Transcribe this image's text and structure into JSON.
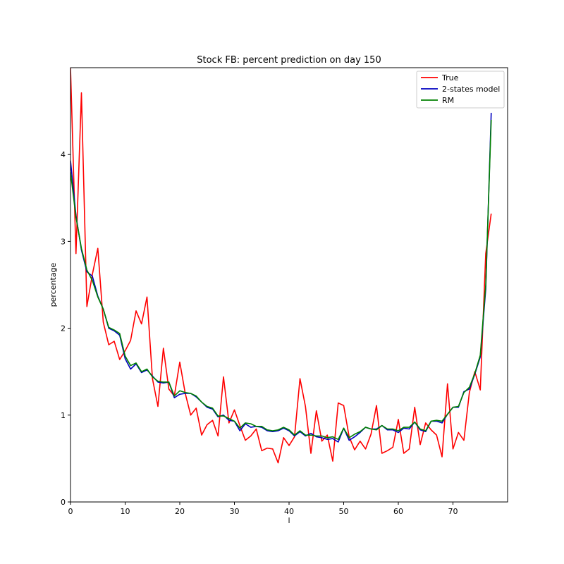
{
  "chart_data": {
    "type": "line",
    "title": "Stock FB: percent prediction on day 150",
    "xlabel": "l",
    "ylabel": "percentage",
    "xlim": [
      0,
      80
    ],
    "ylim": [
      0,
      5
    ],
    "xticks": [
      0,
      10,
      20,
      30,
      40,
      50,
      60,
      70
    ],
    "yticks": [
      0,
      1,
      2,
      3,
      4
    ],
    "grid": false,
    "legend_position": "top-right",
    "series": [
      {
        "name": "True",
        "color": "#ff0000",
        "x": [
          0,
          1,
          2,
          3,
          4,
          5,
          6,
          7,
          8,
          9,
          10,
          11,
          12,
          13,
          14,
          15,
          16,
          17,
          18,
          19,
          20,
          21,
          22,
          23,
          24,
          25,
          26,
          27,
          28,
          29,
          30,
          31,
          32,
          33,
          34,
          35,
          36,
          37,
          38,
          39,
          40,
          41,
          42,
          43,
          44,
          45,
          46,
          47,
          48,
          49,
          50,
          51,
          52,
          53,
          54,
          55,
          56,
          57,
          58,
          59,
          60,
          61,
          62,
          63,
          64,
          65,
          66,
          67,
          68,
          69,
          70,
          71,
          72,
          73,
          74,
          75,
          76,
          77
        ],
        "values": [
          5.0,
          2.86,
          4.71,
          2.25,
          2.62,
          2.92,
          2.07,
          1.81,
          1.85,
          1.64,
          1.74,
          1.86,
          2.2,
          2.05,
          2.36,
          1.42,
          1.1,
          1.77,
          1.3,
          1.22,
          1.61,
          1.25,
          1.0,
          1.08,
          0.77,
          0.89,
          0.94,
          0.76,
          1.44,
          0.91,
          1.06,
          0.88,
          0.71,
          0.76,
          0.84,
          0.59,
          0.62,
          0.61,
          0.45,
          0.74,
          0.65,
          0.75,
          1.42,
          1.1,
          0.56,
          1.05,
          0.7,
          0.77,
          0.47,
          1.14,
          1.11,
          0.75,
          0.6,
          0.7,
          0.61,
          0.78,
          1.11,
          0.56,
          0.59,
          0.63,
          0.95,
          0.56,
          0.61,
          1.09,
          0.66,
          0.91,
          0.83,
          0.77,
          0.52,
          1.36,
          0.61,
          0.8,
          0.71,
          1.26,
          1.5,
          1.29,
          2.86,
          3.32
        ]
      },
      {
        "name": "2-states model",
        "color": "#0000c0",
        "x": [
          0,
          1,
          2,
          3,
          4,
          5,
          6,
          7,
          8,
          9,
          10,
          11,
          12,
          13,
          14,
          15,
          16,
          17,
          18,
          19,
          20,
          21,
          22,
          23,
          24,
          25,
          26,
          27,
          28,
          29,
          30,
          31,
          32,
          33,
          34,
          35,
          36,
          37,
          38,
          39,
          40,
          41,
          42,
          43,
          44,
          45,
          46,
          47,
          48,
          49,
          50,
          51,
          52,
          53,
          54,
          55,
          56,
          57,
          58,
          59,
          60,
          61,
          62,
          63,
          64,
          65,
          66,
          67,
          68,
          69,
          70,
          71,
          72,
          73,
          74,
          75,
          76,
          77
        ],
        "values": [
          3.93,
          3.3,
          2.9,
          2.65,
          2.6,
          2.37,
          2.22,
          2.0,
          1.97,
          1.92,
          1.65,
          1.53,
          1.59,
          1.49,
          1.52,
          1.45,
          1.38,
          1.37,
          1.38,
          1.2,
          1.24,
          1.25,
          1.25,
          1.21,
          1.15,
          1.09,
          1.07,
          0.98,
          1.0,
          0.94,
          0.93,
          0.82,
          0.9,
          0.86,
          0.87,
          0.86,
          0.82,
          0.81,
          0.82,
          0.85,
          0.82,
          0.76,
          0.81,
          0.76,
          0.79,
          0.75,
          0.74,
          0.72,
          0.73,
          0.69,
          0.85,
          0.71,
          0.75,
          0.8,
          0.86,
          0.84,
          0.84,
          0.88,
          0.83,
          0.83,
          0.8,
          0.85,
          0.84,
          0.92,
          0.83,
          0.81,
          0.93,
          0.93,
          0.91,
          1.01,
          1.09,
          1.09,
          1.27,
          1.3,
          1.47,
          1.67,
          2.45,
          4.48
        ]
      },
      {
        "name": "RM",
        "color": "#008000",
        "x": [
          0,
          1,
          2,
          3,
          4,
          5,
          6,
          7,
          8,
          9,
          10,
          11,
          12,
          13,
          14,
          15,
          16,
          17,
          18,
          19,
          20,
          21,
          22,
          23,
          24,
          25,
          26,
          27,
          28,
          29,
          30,
          31,
          32,
          33,
          34,
          35,
          36,
          37,
          38,
          39,
          40,
          41,
          42,
          43,
          44,
          45,
          46,
          47,
          48,
          49,
          50,
          51,
          52,
          53,
          54,
          55,
          56,
          57,
          58,
          59,
          60,
          61,
          62,
          63,
          64,
          65,
          66,
          67,
          68,
          69,
          70,
          71,
          72,
          73,
          74,
          75,
          76,
          77
        ],
        "values": [
          3.8,
          3.28,
          2.92,
          2.67,
          2.55,
          2.36,
          2.22,
          2.01,
          1.98,
          1.94,
          1.68,
          1.57,
          1.6,
          1.5,
          1.53,
          1.44,
          1.39,
          1.38,
          1.38,
          1.22,
          1.28,
          1.26,
          1.25,
          1.22,
          1.15,
          1.1,
          1.08,
          0.99,
          0.99,
          0.96,
          0.93,
          0.85,
          0.91,
          0.9,
          0.87,
          0.87,
          0.83,
          0.82,
          0.83,
          0.86,
          0.83,
          0.77,
          0.82,
          0.77,
          0.77,
          0.76,
          0.76,
          0.74,
          0.75,
          0.72,
          0.85,
          0.74,
          0.78,
          0.81,
          0.86,
          0.84,
          0.83,
          0.88,
          0.84,
          0.84,
          0.82,
          0.86,
          0.86,
          0.92,
          0.84,
          0.82,
          0.93,
          0.94,
          0.93,
          1.01,
          1.09,
          1.1,
          1.26,
          1.32,
          1.48,
          1.69,
          2.5,
          4.4
        ]
      }
    ]
  }
}
